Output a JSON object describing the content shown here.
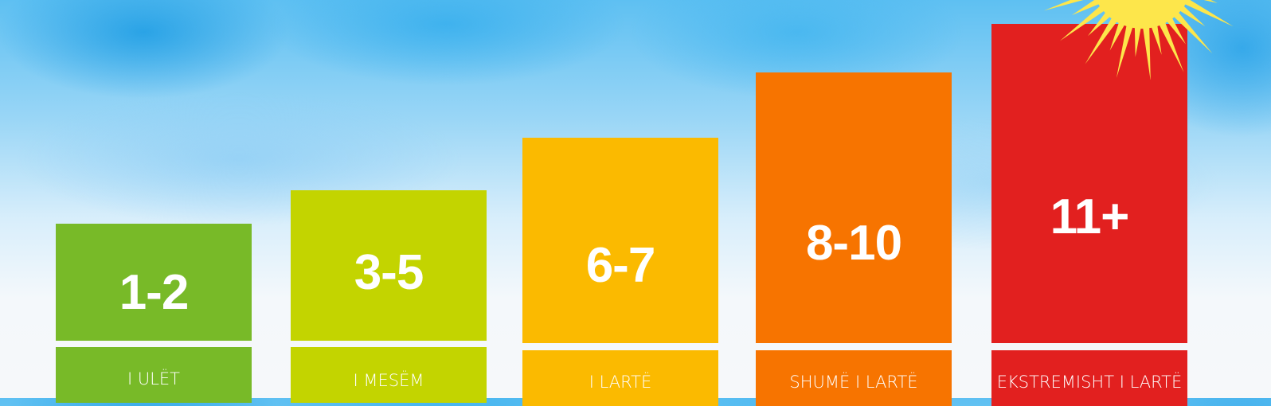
{
  "levels": [
    {
      "range": "1-2",
      "label": "I ULËT",
      "color": "#78ba28"
    },
    {
      "range": "3-5",
      "label": "I MESËM",
      "color": "#c3d400"
    },
    {
      "range": "6-7",
      "label": "I LARTË",
      "color": "#fbba00"
    },
    {
      "range": "8-10",
      "label": "SHUMË I LARTË",
      "color": "#f77400"
    },
    {
      "range": "11+",
      "label": "EKSTREMISHT I LARTË",
      "color": "#e2201f"
    }
  ],
  "sun": {
    "icon": "sun-icon",
    "color": "#fde64b"
  }
}
